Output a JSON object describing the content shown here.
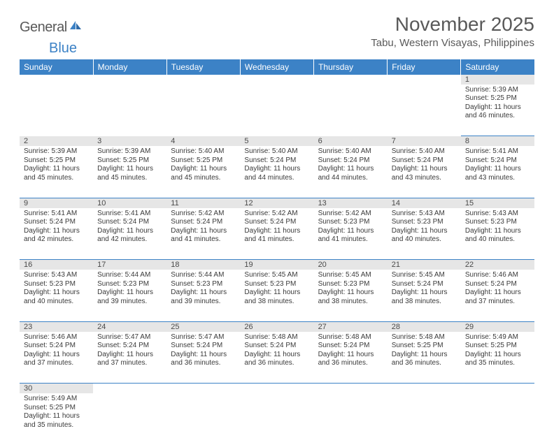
{
  "logo": {
    "word1": "General",
    "word2": "Blue"
  },
  "title": "November 2025",
  "location": "Tabu, Western Visayas, Philippines",
  "colors": {
    "header_bg": "#3c82c6",
    "header_text": "#ffffff",
    "daynum_bg": "#e6e6e6",
    "rule": "#3c82c6",
    "body_text": "#3a3a3a",
    "title_text": "#595959"
  },
  "columns": [
    "Sunday",
    "Monday",
    "Tuesday",
    "Wednesday",
    "Thursday",
    "Friday",
    "Saturday"
  ],
  "weeks": [
    [
      null,
      null,
      null,
      null,
      null,
      null,
      {
        "n": "1",
        "sr": "5:39 AM",
        "ss": "5:25 PM",
        "dl": "11 hours and 46 minutes."
      }
    ],
    [
      {
        "n": "2",
        "sr": "5:39 AM",
        "ss": "5:25 PM",
        "dl": "11 hours and 45 minutes."
      },
      {
        "n": "3",
        "sr": "5:39 AM",
        "ss": "5:25 PM",
        "dl": "11 hours and 45 minutes."
      },
      {
        "n": "4",
        "sr": "5:40 AM",
        "ss": "5:25 PM",
        "dl": "11 hours and 45 minutes."
      },
      {
        "n": "5",
        "sr": "5:40 AM",
        "ss": "5:24 PM",
        "dl": "11 hours and 44 minutes."
      },
      {
        "n": "6",
        "sr": "5:40 AM",
        "ss": "5:24 PM",
        "dl": "11 hours and 44 minutes."
      },
      {
        "n": "7",
        "sr": "5:40 AM",
        "ss": "5:24 PM",
        "dl": "11 hours and 43 minutes."
      },
      {
        "n": "8",
        "sr": "5:41 AM",
        "ss": "5:24 PM",
        "dl": "11 hours and 43 minutes."
      }
    ],
    [
      {
        "n": "9",
        "sr": "5:41 AM",
        "ss": "5:24 PM",
        "dl": "11 hours and 42 minutes."
      },
      {
        "n": "10",
        "sr": "5:41 AM",
        "ss": "5:24 PM",
        "dl": "11 hours and 42 minutes."
      },
      {
        "n": "11",
        "sr": "5:42 AM",
        "ss": "5:24 PM",
        "dl": "11 hours and 41 minutes."
      },
      {
        "n": "12",
        "sr": "5:42 AM",
        "ss": "5:24 PM",
        "dl": "11 hours and 41 minutes."
      },
      {
        "n": "13",
        "sr": "5:42 AM",
        "ss": "5:23 PM",
        "dl": "11 hours and 41 minutes."
      },
      {
        "n": "14",
        "sr": "5:43 AM",
        "ss": "5:23 PM",
        "dl": "11 hours and 40 minutes."
      },
      {
        "n": "15",
        "sr": "5:43 AM",
        "ss": "5:23 PM",
        "dl": "11 hours and 40 minutes."
      }
    ],
    [
      {
        "n": "16",
        "sr": "5:43 AM",
        "ss": "5:23 PM",
        "dl": "11 hours and 40 minutes."
      },
      {
        "n": "17",
        "sr": "5:44 AM",
        "ss": "5:23 PM",
        "dl": "11 hours and 39 minutes."
      },
      {
        "n": "18",
        "sr": "5:44 AM",
        "ss": "5:23 PM",
        "dl": "11 hours and 39 minutes."
      },
      {
        "n": "19",
        "sr": "5:45 AM",
        "ss": "5:23 PM",
        "dl": "11 hours and 38 minutes."
      },
      {
        "n": "20",
        "sr": "5:45 AM",
        "ss": "5:23 PM",
        "dl": "11 hours and 38 minutes."
      },
      {
        "n": "21",
        "sr": "5:45 AM",
        "ss": "5:24 PM",
        "dl": "11 hours and 38 minutes."
      },
      {
        "n": "22",
        "sr": "5:46 AM",
        "ss": "5:24 PM",
        "dl": "11 hours and 37 minutes."
      }
    ],
    [
      {
        "n": "23",
        "sr": "5:46 AM",
        "ss": "5:24 PM",
        "dl": "11 hours and 37 minutes."
      },
      {
        "n": "24",
        "sr": "5:47 AM",
        "ss": "5:24 PM",
        "dl": "11 hours and 37 minutes."
      },
      {
        "n": "25",
        "sr": "5:47 AM",
        "ss": "5:24 PM",
        "dl": "11 hours and 36 minutes."
      },
      {
        "n": "26",
        "sr": "5:48 AM",
        "ss": "5:24 PM",
        "dl": "11 hours and 36 minutes."
      },
      {
        "n": "27",
        "sr": "5:48 AM",
        "ss": "5:24 PM",
        "dl": "11 hours and 36 minutes."
      },
      {
        "n": "28",
        "sr": "5:48 AM",
        "ss": "5:25 PM",
        "dl": "11 hours and 36 minutes."
      },
      {
        "n": "29",
        "sr": "5:49 AM",
        "ss": "5:25 PM",
        "dl": "11 hours and 35 minutes."
      }
    ],
    [
      {
        "n": "30",
        "sr": "5:49 AM",
        "ss": "5:25 PM",
        "dl": "11 hours and 35 minutes."
      },
      null,
      null,
      null,
      null,
      null,
      null
    ]
  ],
  "labels": {
    "sunrise": "Sunrise:",
    "sunset": "Sunset:",
    "daylight": "Daylight:"
  }
}
